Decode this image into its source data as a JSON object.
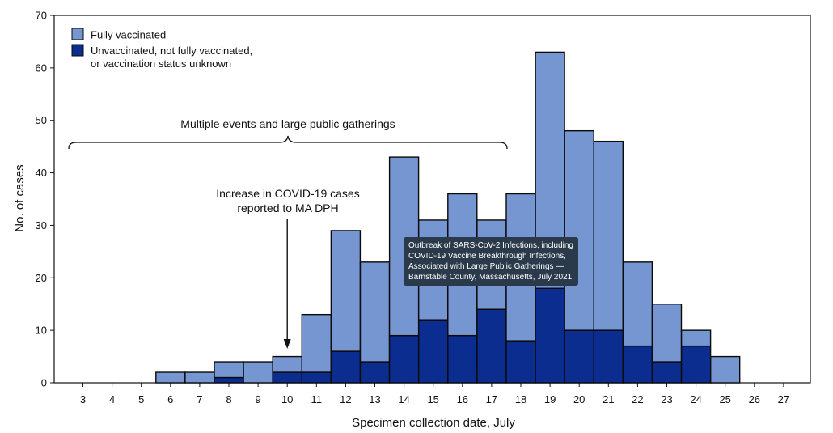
{
  "tooltip": {
    "text": "Outbreak of SARS-CoV-2 Infections, including COVID-19 Vaccine Breakthrough Infections, Associated with Large Public Gatherings — Barnstable County, Massachusetts, July 2021"
  },
  "chart_data": {
    "type": "bar",
    "stacked": true,
    "categories": [
      "3",
      "4",
      "5",
      "6",
      "7",
      "8",
      "9",
      "10",
      "11",
      "12",
      "13",
      "14",
      "15",
      "16",
      "17",
      "18",
      "19",
      "20",
      "21",
      "22",
      "23",
      "24",
      "25",
      "26",
      "27"
    ],
    "series": [
      {
        "name": "Unvaccinated, not fully vaccinated, or vaccination status unknown",
        "color": "#0b2d8f",
        "values": [
          0,
          0,
          0,
          0,
          0,
          1,
          0,
          2,
          2,
          6,
          4,
          9,
          12,
          9,
          14,
          8,
          18,
          10,
          10,
          7,
          4,
          7,
          0,
          0,
          0
        ]
      },
      {
        "name": "Fully vaccinated",
        "color": "#7596d1",
        "values": [
          0,
          0,
          0,
          2,
          2,
          3,
          4,
          3,
          11,
          23,
          19,
          34,
          19,
          27,
          17,
          28,
          45,
          38,
          36,
          16,
          11,
          3,
          5,
          0,
          0
        ]
      }
    ],
    "legend_lines": [
      [
        "Fully vaccinated"
      ],
      [
        "Unvaccinated, not fully vaccinated,",
        "or vaccination status unknown"
      ]
    ],
    "xlabel": "Specimen collection date, July",
    "ylabel": "No. of cases",
    "ylim": [
      0,
      70
    ],
    "yticks": [
      0,
      10,
      20,
      30,
      40,
      50,
      60,
      70
    ],
    "legend_position": "top-left",
    "annotations": {
      "gatherings": "Multiple events and large public gatherings",
      "increase_line1": "Increase in COVID-19 cases",
      "increase_line2": "reported to MA DPH",
      "increase_date": "10"
    }
  }
}
